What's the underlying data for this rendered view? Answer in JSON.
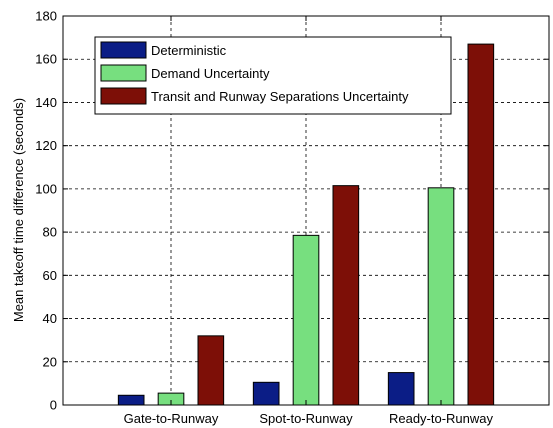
{
  "chart_data": {
    "type": "bar",
    "title": "",
    "xlabel": "",
    "ylabel": "Mean takeoff time difference (seconds)",
    "ylim": [
      0,
      180
    ],
    "yticks": [
      0,
      20,
      40,
      60,
      80,
      100,
      120,
      140,
      160,
      180
    ],
    "grid": true,
    "legend_position": "top-left",
    "categories": [
      "Gate-to-Runway",
      "Spot-to-Runway",
      "Ready-to-Runway"
    ],
    "series": [
      {
        "name": "Deterministic",
        "color": "#0b1d86",
        "values": [
          4.5,
          10.5,
          15
        ]
      },
      {
        "name": "Demand Uncertainty",
        "color": "#77df7f",
        "values": [
          5.5,
          78.5,
          100.5
        ]
      },
      {
        "name": "Transit and Runway Separations Uncertainty",
        "color": "#7d0f07",
        "values": [
          32,
          101.5,
          167
        ]
      }
    ]
  }
}
